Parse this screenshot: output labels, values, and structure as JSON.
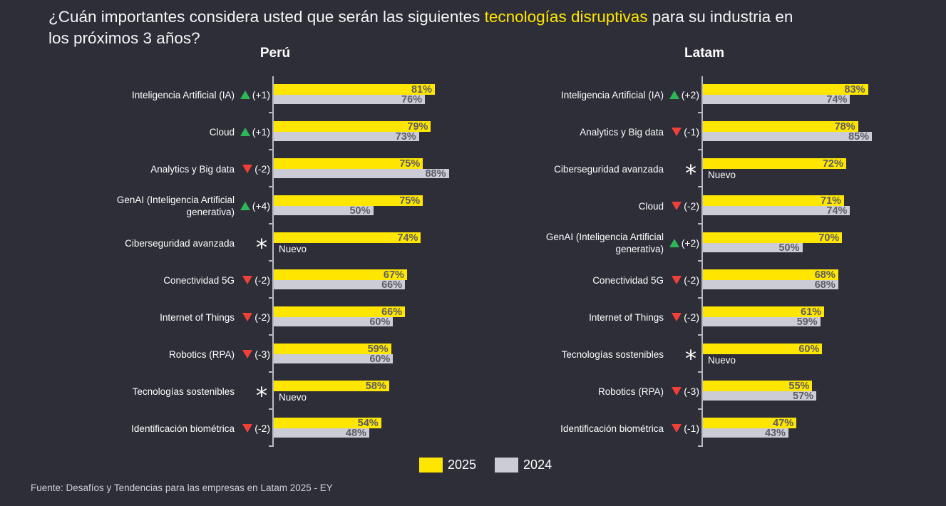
{
  "title": {
    "prefix": "¿Cuán importantes considera usted que serán las siguientes ",
    "highlight": "tecnologías disruptivas",
    "suffix": " para su industria en",
    "line2": "los próximos 3 años?"
  },
  "colors": {
    "background": "#2e2e38",
    "bar_2025": "#ffe600",
    "bar_2024": "#cbccd5",
    "up": "#2db757",
    "down": "#f23f38",
    "axis": "#b9b9c2",
    "value_text": "#5c5c66"
  },
  "legend": [
    {
      "label": "2025",
      "color": "#ffe600"
    },
    {
      "label": "2024",
      "color": "#cbccd5"
    }
  ],
  "footer": "Fuente: Desafíos y Tendencias para las empresas en Latam 2025 - EY",
  "chart_data": [
    {
      "type": "bar",
      "orientation": "horizontal",
      "title": "Perú",
      "xlim": [
        0,
        100
      ],
      "unit": "%",
      "series_names": [
        "2025",
        "2024"
      ],
      "rows": [
        {
          "label": "Inteligencia Artificial (IA)",
          "direction": "up",
          "change": "(+1)",
          "v2025": 81,
          "v2024": 76
        },
        {
          "label": "Cloud",
          "direction": "up",
          "change": "(+1)",
          "v2025": 79,
          "v2024": 73
        },
        {
          "label": "Analytics y Big data",
          "direction": "down",
          "change": "(-2)",
          "v2025": 75,
          "v2024": 88
        },
        {
          "label": "GenAI (Inteligencia Artificial generativa)",
          "label_lines": [
            "GenAI (Inteligencia Artificial",
            "generativa)"
          ],
          "direction": "up",
          "change": "(+4)",
          "v2025": 75,
          "v2024": 50
        },
        {
          "label": "Ciberseguridad avanzada",
          "direction": "new",
          "change": "*",
          "v2025": 74,
          "v2024": null,
          "new_label": "Nuevo"
        },
        {
          "label": "Conectividad 5G",
          "direction": "down",
          "change": "(-2)",
          "v2025": 67,
          "v2024": 66
        },
        {
          "label": "Internet of Things",
          "direction": "down",
          "change": "(-2)",
          "v2025": 66,
          "v2024": 60
        },
        {
          "label": "Robotics (RPA)",
          "direction": "down",
          "change": "(-3)",
          "v2025": 59,
          "v2024": 60
        },
        {
          "label": "Tecnologías sostenibles",
          "direction": "new",
          "change": "*",
          "v2025": 58,
          "v2024": null,
          "new_label": "Nuevo"
        },
        {
          "label": "Identificación biométrica",
          "direction": "down",
          "change": "(-2)",
          "v2025": 54,
          "v2024": 48
        }
      ]
    },
    {
      "type": "bar",
      "orientation": "horizontal",
      "title": "Latam",
      "xlim": [
        0,
        100
      ],
      "unit": "%",
      "series_names": [
        "2025",
        "2024"
      ],
      "rows": [
        {
          "label": "Inteligencia Artificial (IA)",
          "direction": "up",
          "change": "(+2)",
          "v2025": 83,
          "v2024": 74
        },
        {
          "label": "Analytics y Big data",
          "direction": "down",
          "change": "(-1)",
          "v2025": 78,
          "v2024": 85
        },
        {
          "label": "Ciberseguridad avanzada",
          "direction": "new",
          "change": "*",
          "v2025": 72,
          "v2024": null,
          "new_label": "Nuevo"
        },
        {
          "label": "Cloud",
          "direction": "down",
          "change": "(-2)",
          "v2025": 71,
          "v2024": 74
        },
        {
          "label": "GenAI (Inteligencia Artificial generativa)",
          "label_lines": [
            "GenAI (Inteligencia Artificial",
            "generativa)"
          ],
          "direction": "up",
          "change": "(+2)",
          "v2025": 70,
          "v2024": 50
        },
        {
          "label": "Conectividad 5G",
          "direction": "down",
          "change": "(-2)",
          "v2025": 68,
          "v2024": 68
        },
        {
          "label": "Internet of Things",
          "direction": "down",
          "change": "(-2)",
          "v2025": 61,
          "v2024": 59
        },
        {
          "label": "Tecnologías sostenibles",
          "direction": "new",
          "change": "*",
          "v2025": 60,
          "v2024": null,
          "new_label": "Nuevo"
        },
        {
          "label": "Robotics (RPA)",
          "direction": "down",
          "change": "(-3)",
          "v2025": 55,
          "v2024": 57
        },
        {
          "label": "Identificación biométrica",
          "direction": "down",
          "change": "(-1)",
          "v2025": 47,
          "v2024": 43
        }
      ]
    }
  ]
}
